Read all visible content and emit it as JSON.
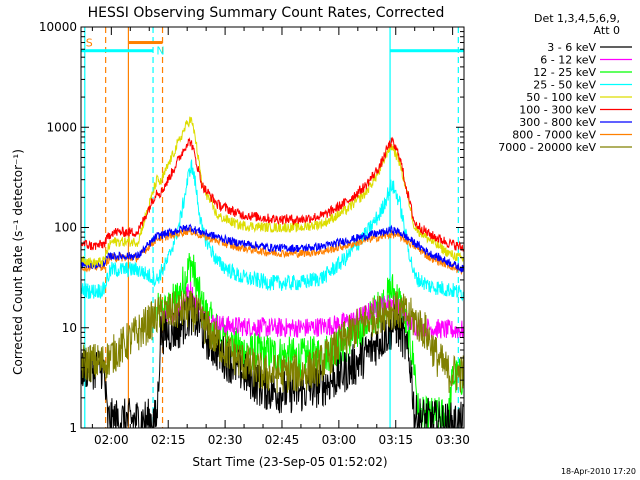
{
  "chart_data": {
    "type": "line",
    "title": "HESSI Observing Summary Count Rates, Corrected",
    "xlabel": "Start Time (23-Sep-05 01:52:02)",
    "ylabel": "Corrected Count Rate (s⁻¹ detector⁻¹)",
    "x_tick_labels": [
      "02:00",
      "02:15",
      "02:30",
      "02:45",
      "03:00",
      "03:15",
      "03:30"
    ],
    "x_tick_minutes": [
      8,
      23,
      38,
      53,
      68,
      83,
      98
    ],
    "xlim_minutes": [
      0,
      101
    ],
    "y_scale": "log",
    "ylim": [
      1,
      10000
    ],
    "y_tick_labels": [
      "1",
      "10",
      "100",
      "1000",
      "10000"
    ],
    "y_tick_values": [
      1,
      10,
      100,
      1000,
      10000
    ],
    "grid": false,
    "legend_position": "outside-right",
    "legend_header": [
      "Det 1,3,4,5,6,9,",
      "Att 0"
    ],
    "series": [
      {
        "name": "3 - 6 keV",
        "color": "#000000"
      },
      {
        "name": "6 - 12 keV",
        "color": "#ff00ff"
      },
      {
        "name": "12 - 25 keV",
        "color": "#00ff00"
      },
      {
        "name": "25 - 50 keV",
        "color": "#00ffff"
      },
      {
        "name": "50 - 100 keV",
        "color": "#dddd00"
      },
      {
        "name": "100 - 300 keV",
        "color": "#ff0000"
      },
      {
        "name": "300 - 800 keV",
        "color": "#0000ff"
      },
      {
        "name": "800 - 7000 keV",
        "color": "#ff8000"
      },
      {
        "name": "7000 - 20000 keV",
        "color": "#808000"
      }
    ],
    "series_profiles": [
      {
        "index": 0,
        "points": [
          [
            0,
            4
          ],
          [
            6,
            4
          ],
          [
            7,
            1.2
          ],
          [
            8,
            1.2
          ],
          [
            20,
            1.2
          ],
          [
            21,
            9
          ],
          [
            23,
            9
          ],
          [
            26,
            10
          ],
          [
            29,
            14
          ],
          [
            31,
            11
          ],
          [
            34,
            7
          ],
          [
            38,
            5
          ],
          [
            43,
            3.5
          ],
          [
            48,
            2.5
          ],
          [
            52,
            2.3
          ],
          [
            58,
            2.3
          ],
          [
            65,
            2.8
          ],
          [
            73,
            4.5
          ],
          [
            78,
            7
          ],
          [
            81,
            9
          ],
          [
            83,
            11
          ],
          [
            85,
            8
          ],
          [
            87,
            4
          ],
          [
            88,
            1.3
          ],
          [
            92,
            1.2
          ],
          [
            96,
            1.1
          ],
          [
            101,
            1.1
          ]
        ],
        "noise": 0.22
      },
      {
        "index": 1,
        "points": [
          [
            21,
            12
          ],
          [
            23,
            12
          ],
          [
            26,
            16
          ],
          [
            28,
            22
          ],
          [
            29,
            24
          ],
          [
            30,
            18
          ],
          [
            33,
            12
          ],
          [
            38,
            10.5
          ],
          [
            50,
            10
          ],
          [
            60,
            10
          ],
          [
            66,
            10.5
          ],
          [
            72,
            12
          ],
          [
            77,
            15
          ],
          [
            80,
            17
          ],
          [
            82,
            18
          ],
          [
            84,
            15
          ],
          [
            86,
            12
          ],
          [
            88,
            10.5
          ],
          [
            92,
            10
          ],
          [
            97,
            9.5
          ],
          [
            101,
            9.5
          ]
        ],
        "noise": 0.1
      },
      {
        "index": 2,
        "points": [
          [
            20,
            14
          ],
          [
            23,
            15
          ],
          [
            26,
            22
          ],
          [
            28,
            36
          ],
          [
            29,
            45
          ],
          [
            30,
            32
          ],
          [
            32,
            16
          ],
          [
            36,
            9
          ],
          [
            42,
            6
          ],
          [
            50,
            5.5
          ],
          [
            58,
            5
          ],
          [
            64,
            5.5
          ],
          [
            70,
            7
          ],
          [
            76,
            12
          ],
          [
            80,
            18
          ],
          [
            82,
            24
          ],
          [
            84,
            18
          ],
          [
            86,
            10
          ],
          [
            88,
            4
          ],
          [
            89,
            1.3
          ],
          [
            93,
            1.3
          ],
          [
            97,
            1.3
          ],
          [
            98,
            3.2
          ],
          [
            101,
            3.2
          ]
        ],
        "noise": 0.2
      },
      {
        "index": 3,
        "points": [
          [
            0,
            24
          ],
          [
            3,
            23
          ],
          [
            6,
            24
          ],
          [
            7,
            32
          ],
          [
            8,
            38
          ],
          [
            15,
            38
          ],
          [
            20,
            30
          ],
          [
            23,
            48
          ],
          [
            26,
            110
          ],
          [
            28,
            280
          ],
          [
            29,
            430
          ],
          [
            30,
            300
          ],
          [
            32,
            90
          ],
          [
            36,
            45
          ],
          [
            42,
            32
          ],
          [
            50,
            28
          ],
          [
            58,
            28
          ],
          [
            64,
            32
          ],
          [
            70,
            50
          ],
          [
            75,
            85
          ],
          [
            79,
            140
          ],
          [
            81,
            220
          ],
          [
            82,
            270
          ],
          [
            84,
            180
          ],
          [
            86,
            70
          ],
          [
            88,
            32
          ],
          [
            92,
            26
          ],
          [
            97,
            24
          ],
          [
            101,
            22
          ]
        ],
        "noise": 0.08
      },
      {
        "index": 4,
        "points": [
          [
            0,
            50
          ],
          [
            3,
            44
          ],
          [
            6,
            46
          ],
          [
            7,
            60
          ],
          [
            8,
            72
          ],
          [
            15,
            72
          ],
          [
            20,
            300
          ],
          [
            21,
            280
          ],
          [
            23,
            420
          ],
          [
            26,
            750
          ],
          [
            28,
            1100
          ],
          [
            29,
            1200
          ],
          [
            30,
            850
          ],
          [
            32,
            260
          ],
          [
            36,
            130
          ],
          [
            42,
            105
          ],
          [
            50,
            100
          ],
          [
            58,
            100
          ],
          [
            64,
            110
          ],
          [
            70,
            150
          ],
          [
            75,
            220
          ],
          [
            79,
            380
          ],
          [
            81,
            600
          ],
          [
            82,
            650
          ],
          [
            84,
            450
          ],
          [
            86,
            220
          ],
          [
            88,
            100
          ],
          [
            92,
            75
          ],
          [
            97,
            55
          ],
          [
            101,
            48
          ]
        ],
        "noise": 0.05
      },
      {
        "index": 5,
        "points": [
          [
            0,
            70
          ],
          [
            3,
            65
          ],
          [
            6,
            68
          ],
          [
            7,
            78
          ],
          [
            8,
            90
          ],
          [
            15,
            90
          ],
          [
            20,
            230
          ],
          [
            21,
            220
          ],
          [
            23,
            300
          ],
          [
            26,
            500
          ],
          [
            28,
            700
          ],
          [
            29,
            720
          ],
          [
            30,
            520
          ],
          [
            32,
            260
          ],
          [
            36,
            170
          ],
          [
            42,
            135
          ],
          [
            50,
            122
          ],
          [
            58,
            120
          ],
          [
            64,
            132
          ],
          [
            70,
            180
          ],
          [
            75,
            260
          ],
          [
            79,
            420
          ],
          [
            81,
            640
          ],
          [
            82,
            720
          ],
          [
            84,
            520
          ],
          [
            86,
            230
          ],
          [
            88,
            110
          ],
          [
            92,
            85
          ],
          [
            97,
            70
          ],
          [
            101,
            62
          ]
        ],
        "noise": 0.05
      },
      {
        "index": 6,
        "points": [
          [
            0,
            43
          ],
          [
            3,
            42
          ],
          [
            6,
            44
          ],
          [
            7,
            50
          ],
          [
            8,
            52
          ],
          [
            15,
            52
          ],
          [
            20,
            82
          ],
          [
            23,
            88
          ],
          [
            26,
            95
          ],
          [
            28,
            100
          ],
          [
            29,
            100
          ],
          [
            30,
            95
          ],
          [
            34,
            85
          ],
          [
            40,
            72
          ],
          [
            50,
            63
          ],
          [
            58,
            62
          ],
          [
            64,
            65
          ],
          [
            70,
            74
          ],
          [
            76,
            84
          ],
          [
            80,
            90
          ],
          [
            82,
            95
          ],
          [
            84,
            90
          ],
          [
            88,
            70
          ],
          [
            92,
            55
          ],
          [
            97,
            45
          ],
          [
            101,
            38
          ]
        ],
        "noise": 0.04
      },
      {
        "index": 7,
        "points": [
          [
            0,
            40
          ],
          [
            3,
            40
          ],
          [
            6,
            41
          ],
          [
            7,
            47
          ],
          [
            8,
            50
          ],
          [
            15,
            50
          ],
          [
            20,
            78
          ],
          [
            23,
            82
          ],
          [
            26,
            88
          ],
          [
            28,
            92
          ],
          [
            29,
            92
          ],
          [
            30,
            88
          ],
          [
            34,
            78
          ],
          [
            40,
            65
          ],
          [
            50,
            56
          ],
          [
            58,
            55
          ],
          [
            64,
            58
          ],
          [
            70,
            66
          ],
          [
            76,
            76
          ],
          [
            80,
            82
          ],
          [
            82,
            86
          ],
          [
            84,
            82
          ],
          [
            88,
            65
          ],
          [
            92,
            50
          ],
          [
            97,
            42
          ],
          [
            101,
            36
          ]
        ],
        "noise": 0.04
      },
      {
        "index": 8,
        "points": [
          [
            0,
            4.5
          ],
          [
            6,
            4.5
          ],
          [
            21,
            14
          ],
          [
            23,
            14
          ],
          [
            26,
            15
          ],
          [
            29,
            15
          ],
          [
            31,
            13
          ],
          [
            34,
            9
          ],
          [
            38,
            6
          ],
          [
            43,
            4.5
          ],
          [
            48,
            3.5
          ],
          [
            52,
            3.5
          ],
          [
            58,
            3.5
          ],
          [
            62,
            4
          ],
          [
            66,
            5.5
          ],
          [
            70,
            8
          ],
          [
            74,
            11
          ],
          [
            78,
            13.5
          ],
          [
            81,
            15
          ],
          [
            83,
            15
          ],
          [
            85,
            14
          ],
          [
            88,
            12
          ],
          [
            91,
            9
          ],
          [
            94,
            5
          ],
          [
            97,
            3.5
          ],
          [
            101,
            3.5
          ]
        ],
        "noise": 0.2
      }
    ],
    "annotations": [
      {
        "type": "line",
        "label": "",
        "minute": 1,
        "color": "#00ffff",
        "dashed": false
      },
      {
        "type": "line",
        "label": "",
        "minute": 6.5,
        "color": "#ff8000",
        "dashed": true
      },
      {
        "type": "line",
        "label": "",
        "minute": 12.5,
        "color": "#ff8000",
        "dashed": false
      },
      {
        "type": "line",
        "label": "",
        "minute": 19,
        "color": "#00ffff",
        "dashed": true
      },
      {
        "type": "line",
        "label": "",
        "minute": 21.5,
        "color": "#ff8000",
        "dashed": true
      },
      {
        "type": "line",
        "label": "",
        "minute": 81.5,
        "color": "#00ffff",
        "dashed": false
      },
      {
        "type": "line",
        "label": "",
        "minute": 99.5,
        "color": "#00ffff",
        "dashed": true
      },
      {
        "type": "bar",
        "label": "",
        "start": 0,
        "end": 19,
        "value": 5800,
        "color": "#00ffff"
      },
      {
        "type": "bar",
        "label": "",
        "start": 12.5,
        "end": 21.5,
        "value": 7000,
        "color": "#ff8000"
      },
      {
        "type": "bar",
        "label": "",
        "start": 81.5,
        "end": 101,
        "value": 5800,
        "color": "#00ffff"
      },
      {
        "type": "label",
        "label": "S",
        "minute": 1,
        "value": 7000,
        "color": "#ff8000"
      },
      {
        "type": "label",
        "label": "N",
        "minute": 19.6,
        "value": 5800,
        "color": "#00ffff"
      }
    ]
  },
  "footer": {
    "timestamp": "18-Apr-2010 17:20"
  }
}
